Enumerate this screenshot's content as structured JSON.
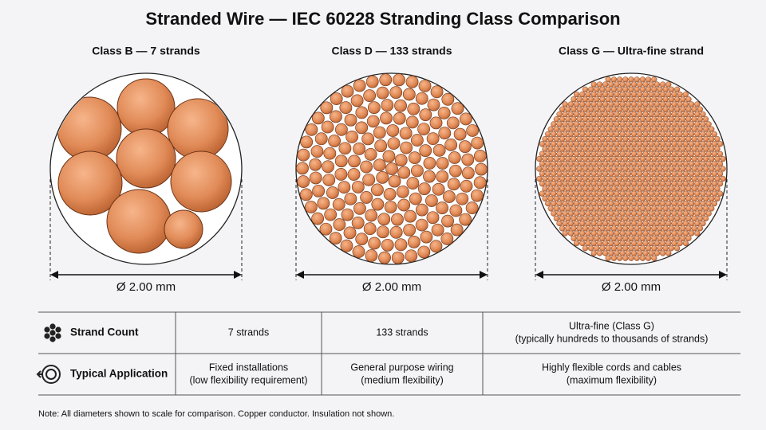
{
  "title": "Stranded Wire — IEC 60228 Stranding Class Comparison",
  "panels": [
    {
      "label": "Class B — 7 strands",
      "diameter": "Ø 2.00 mm"
    },
    {
      "label": "Class D — 133 strands",
      "diameter": "Ø 2.00 mm"
    },
    {
      "label": "Class G — Ultra-fine strand",
      "diameter": "Ø 2.00 mm"
    }
  ],
  "table": {
    "rows": [
      {
        "header": "Strand Count",
        "cells": [
          [
            "7 strands"
          ],
          [
            "133 strands"
          ],
          [
            "Ultra-fine (Class G)",
            "(typically hundreds to thousands of strands)"
          ]
        ]
      },
      {
        "header": "Typical Application",
        "cells": [
          [
            "Fixed installations",
            "(low flexibility requirement)"
          ],
          [
            "General purpose wiring",
            "(medium flexibility)"
          ],
          [
            "Highly flexible cords and cables",
            "(maximum flexibility)"
          ]
        ]
      }
    ]
  },
  "note": "Note: All diameters shown to scale for comparison. Copper conductor. Insulation not shown."
}
